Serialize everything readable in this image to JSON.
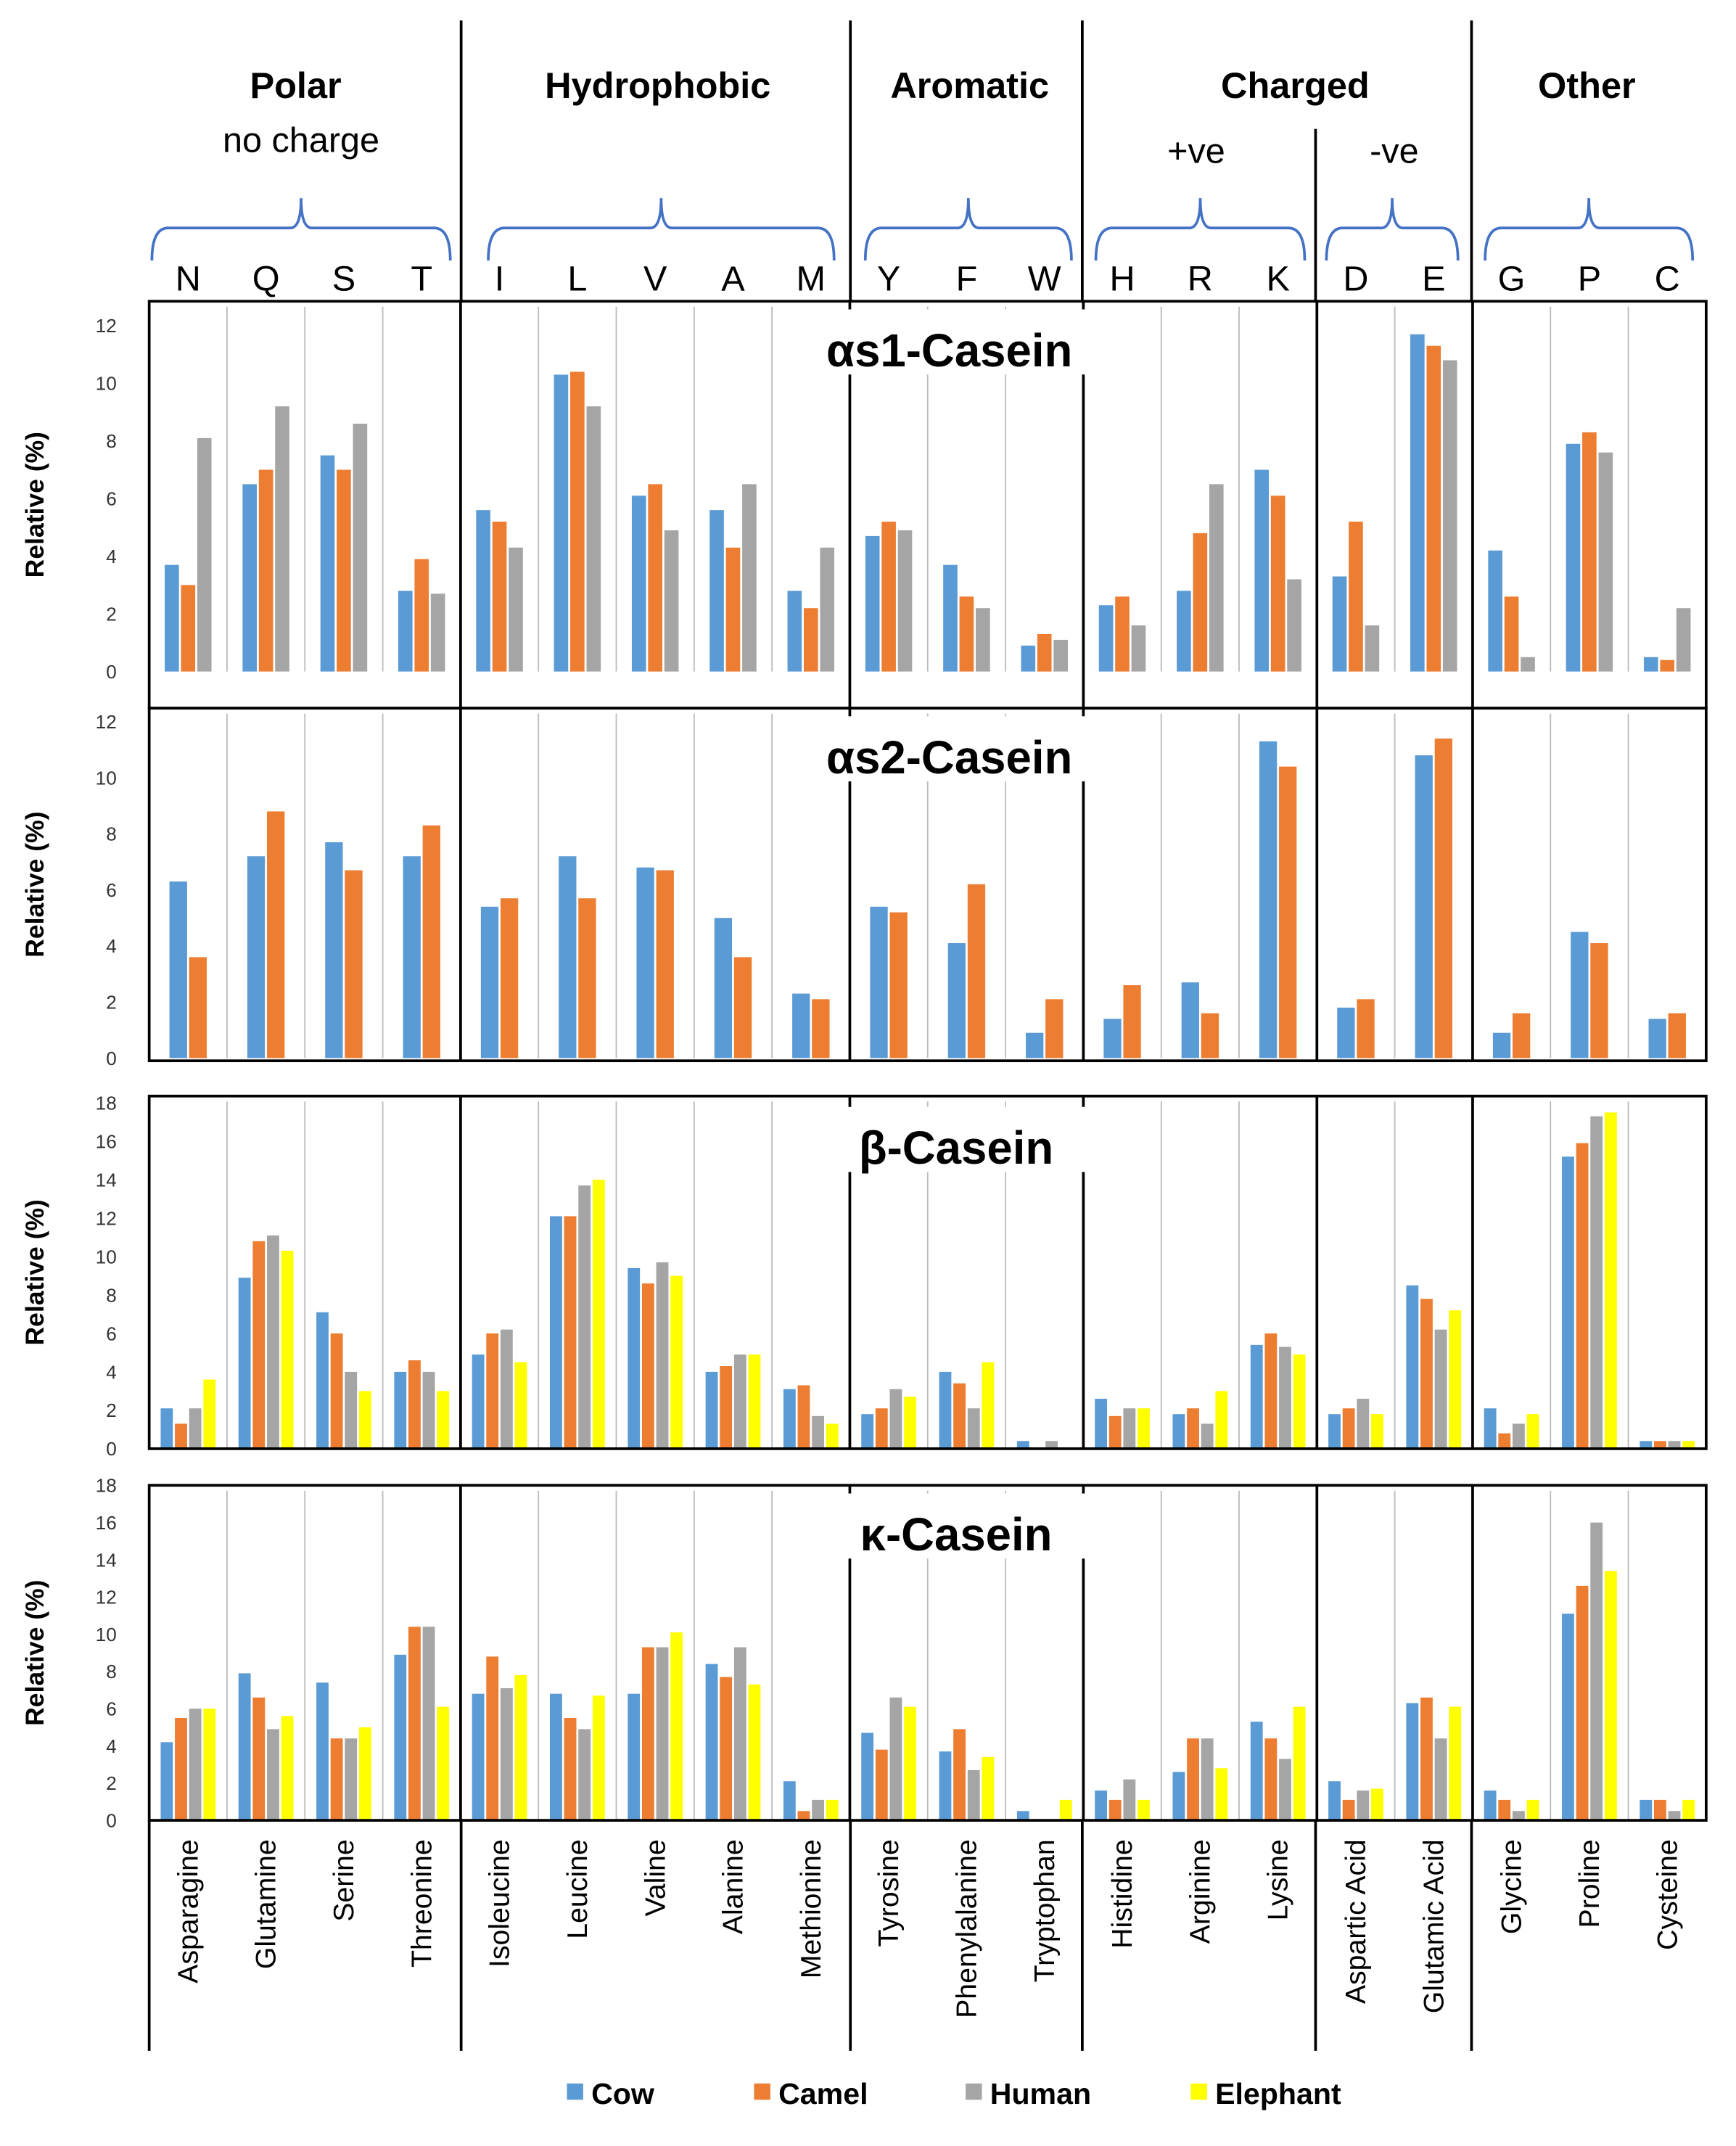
{
  "colors": {
    "Cow": "#5B9BD5",
    "Camel": "#ED7D31",
    "Human": "#A5A5A5",
    "Elephant": "#FFFF00",
    "brace": "#4472C4"
  },
  "groups": [
    {
      "name": "Polar",
      "sub": "no charge"
    },
    {
      "name": "Hydrophobic"
    },
    {
      "name": "Aromatic"
    },
    {
      "name": "Charged",
      "sub_pos": "+ve",
      "sub_neg": "-ve"
    },
    {
      "name": "Other"
    }
  ],
  "chart_data": {
    "type": "bar",
    "ylabel": "Relative (%)",
    "letters": [
      "N",
      "Q",
      "S",
      "T",
      "I",
      "L",
      "V",
      "A",
      "M",
      "Y",
      "F",
      "W",
      "H",
      "R",
      "K",
      "D",
      "E",
      "G",
      "P",
      "C"
    ],
    "categories": [
      "Asparagine",
      "Glutamine",
      "Serine",
      "Threonine",
      "Isoleucine",
      "Leucine",
      "Valine",
      "Alanine",
      "Methionine",
      "Tyrosine",
      "Phenylalanine",
      "Tryptophan",
      "Histidine",
      "Arginine",
      "Lysine",
      "Aspartic Acid",
      "Glutamic Acid",
      "Glycine",
      "Proline",
      "Cysteine"
    ],
    "legend": [
      "Cow",
      "Camel",
      "Human",
      "Elephant"
    ],
    "legend_position": "bottom",
    "panels": [
      {
        "title": "αs1-Casein",
        "ylim": [
          0,
          12
        ],
        "ticks": [
          "0",
          "2",
          "4",
          "6",
          "8",
          "10",
          "12"
        ],
        "series": [
          {
            "name": "Cow",
            "values": [
              3.7,
              6.5,
              7.5,
              2.8,
              5.6,
              10.3,
              6.1,
              5.6,
              2.8,
              4.7,
              3.7,
              0.9,
              2.3,
              2.8,
              7.0,
              3.3,
              11.7,
              4.2,
              7.9,
              0.5
            ]
          },
          {
            "name": "Camel",
            "values": [
              3.0,
              7.0,
              7.0,
              3.9,
              5.2,
              10.4,
              6.5,
              4.3,
              2.2,
              5.2,
              2.6,
              1.3,
              2.6,
              4.8,
              6.1,
              5.2,
              11.3,
              2.6,
              8.3,
              0.4
            ]
          },
          {
            "name": "Human",
            "values": [
              8.1,
              9.2,
              8.6,
              2.7,
              4.3,
              9.2,
              4.9,
              6.5,
              4.3,
              4.9,
              2.2,
              1.1,
              1.6,
              6.5,
              3.2,
              1.6,
              10.8,
              0.5,
              7.6,
              2.2
            ]
          }
        ]
      },
      {
        "title": "αs2-Casein",
        "ylim": [
          0,
          12
        ],
        "ticks": [
          "0",
          "2",
          "4",
          "6",
          "8",
          "10",
          "12"
        ],
        "series": [
          {
            "name": "Cow",
            "values": [
              6.3,
              7.2,
              7.7,
              7.2,
              5.4,
              7.2,
              6.8,
              5.0,
              2.3,
              5.4,
              4.1,
              0.9,
              1.4,
              2.7,
              11.3,
              1.8,
              10.8,
              0.9,
              4.5,
              1.4
            ]
          },
          {
            "name": "Camel",
            "values": [
              3.6,
              8.8,
              6.7,
              8.3,
              5.7,
              5.7,
              6.7,
              3.6,
              2.1,
              5.2,
              6.2,
              2.1,
              2.6,
              1.6,
              10.4,
              2.1,
              11.4,
              1.6,
              4.1,
              1.6
            ]
          }
        ]
      },
      {
        "title": "β-Casein",
        "ylim": [
          0,
          18
        ],
        "ticks": [
          "0",
          "2",
          "4",
          "6",
          "8",
          "10",
          "12",
          "14",
          "16",
          "18"
        ],
        "series": [
          {
            "name": "Cow",
            "values": [
              2.1,
              8.9,
              7.1,
              4.0,
              4.9,
              12.1,
              9.4,
              4.0,
              3.1,
              1.8,
              4.0,
              0.4,
              2.6,
              1.8,
              5.4,
              1.8,
              8.5,
              2.1,
              15.2,
              0.4
            ]
          },
          {
            "name": "Camel",
            "values": [
              1.3,
              10.8,
              6.0,
              4.6,
              6.0,
              12.1,
              8.6,
              4.3,
              3.3,
              2.1,
              3.4,
              0,
              1.7,
              2.1,
              6.0,
              2.1,
              7.8,
              0.8,
              15.9,
              0.4
            ]
          },
          {
            "name": "Human",
            "values": [
              2.1,
              11.1,
              4.0,
              4.0,
              6.2,
              13.7,
              9.7,
              4.9,
              1.7,
              3.1,
              2.1,
              0.4,
              2.1,
              1.3,
              5.3,
              2.6,
              6.2,
              1.3,
              17.3,
              0.4
            ]
          },
          {
            "name": "Elephant",
            "values": [
              3.6,
              10.3,
              3.0,
              3.0,
              4.5,
              14.0,
              9.0,
              4.9,
              1.3,
              2.7,
              4.5,
              0,
              2.1,
              3.0,
              4.9,
              1.8,
              7.2,
              1.8,
              17.5,
              0.4
            ]
          }
        ]
      },
      {
        "title": "κ-Casein",
        "ylim": [
          0,
          18
        ],
        "ticks": [
          "0",
          "2",
          "4",
          "6",
          "8",
          "10",
          "12",
          "14",
          "16",
          "18"
        ],
        "series": [
          {
            "name": "Cow",
            "values": [
              4.2,
              7.9,
              7.4,
              8.9,
              6.8,
              6.8,
              6.8,
              8.4,
              2.1,
              4.7,
              3.7,
              0.5,
              1.6,
              2.6,
              5.3,
              2.1,
              6.3,
              1.6,
              11.1,
              1.1
            ]
          },
          {
            "name": "Camel",
            "values": [
              5.5,
              6.6,
              4.4,
              10.4,
              8.8,
              5.5,
              9.3,
              7.7,
              0.5,
              3.8,
              4.9,
              0,
              1.1,
              4.4,
              4.4,
              1.1,
              6.6,
              1.1,
              12.6,
              1.1
            ]
          },
          {
            "name": "Human",
            "values": [
              6.0,
              4.9,
              4.4,
              10.4,
              7.1,
              4.9,
              9.3,
              9.3,
              1.1,
              6.6,
              2.7,
              0,
              2.2,
              4.4,
              3.3,
              1.6,
              4.4,
              0.5,
              16.0,
              0.5
            ]
          },
          {
            "name": "Elephant",
            "values": [
              6.0,
              5.6,
              5.0,
              6.1,
              7.8,
              6.7,
              10.1,
              7.3,
              1.1,
              6.1,
              3.4,
              1.1,
              1.1,
              2.8,
              6.1,
              1.7,
              6.1,
              1.1,
              13.4,
              1.1
            ]
          }
        ]
      }
    ]
  }
}
